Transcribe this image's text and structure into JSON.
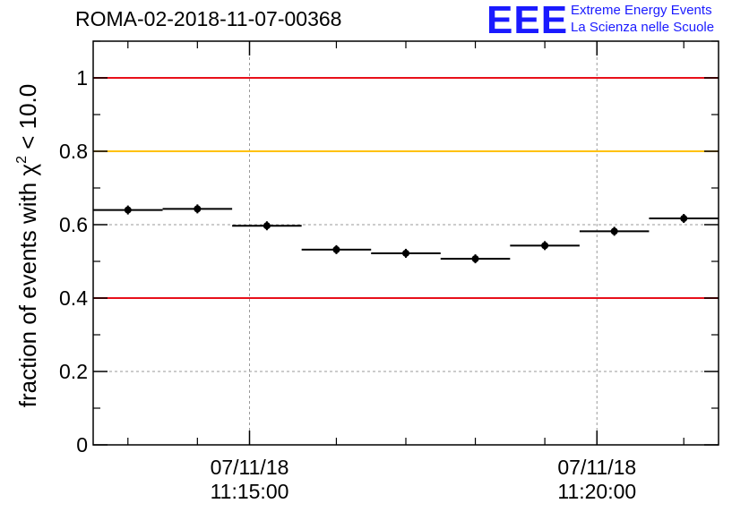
{
  "title": "ROMA-02-2018-11-07-00368",
  "logo": {
    "mark": "EEE",
    "line1": "Extreme Energy Events",
    "line2": "La Scienza nelle Scuole"
  },
  "chart_data": {
    "type": "scatter",
    "ylabel_main": "fraction of events with χ",
    "ylabel_sup": "2",
    "ylabel_tail": " < 10.0",
    "xlabel": "",
    "ylim": [
      0,
      1.1
    ],
    "yticks": [
      0,
      0.2,
      0.4,
      0.6,
      0.8,
      1
    ],
    "ytick_labels": [
      "0",
      "0.2",
      "0.4",
      "0.6",
      "0.8",
      "1"
    ],
    "xlim": [
      "11:12:45",
      "11:21:45"
    ],
    "xticks_major": [
      {
        "time": "11:15:00",
        "date_label": "07/11/18",
        "time_label": "11:15:00"
      },
      {
        "time": "11:20:00",
        "date_label": "07/11/18",
        "time_label": "11:20:00"
      }
    ],
    "xticks_minor": [
      "11:13:15",
      "11:14:15",
      "11:16:15",
      "11:17:15",
      "11:18:15",
      "11:19:15",
      "11:21:15"
    ],
    "grid": true,
    "reference_lines": [
      {
        "y": 1.0,
        "color": "#e8101a"
      },
      {
        "y": 0.8,
        "color": "#ffc107"
      },
      {
        "y": 0.4,
        "color": "#e8101a"
      }
    ],
    "bin_width_seconds": 60,
    "points": [
      {
        "x": "11:13:15",
        "y": 0.64
      },
      {
        "x": "11:14:15",
        "y": 0.643
      },
      {
        "x": "11:15:15",
        "y": 0.597
      },
      {
        "x": "11:16:15",
        "y": 0.532
      },
      {
        "x": "11:17:15",
        "y": 0.522
      },
      {
        "x": "11:18:15",
        "y": 0.507
      },
      {
        "x": "11:19:15",
        "y": 0.543
      },
      {
        "x": "11:20:15",
        "y": 0.582
      },
      {
        "x": "11:21:15",
        "y": 0.617
      }
    ]
  }
}
